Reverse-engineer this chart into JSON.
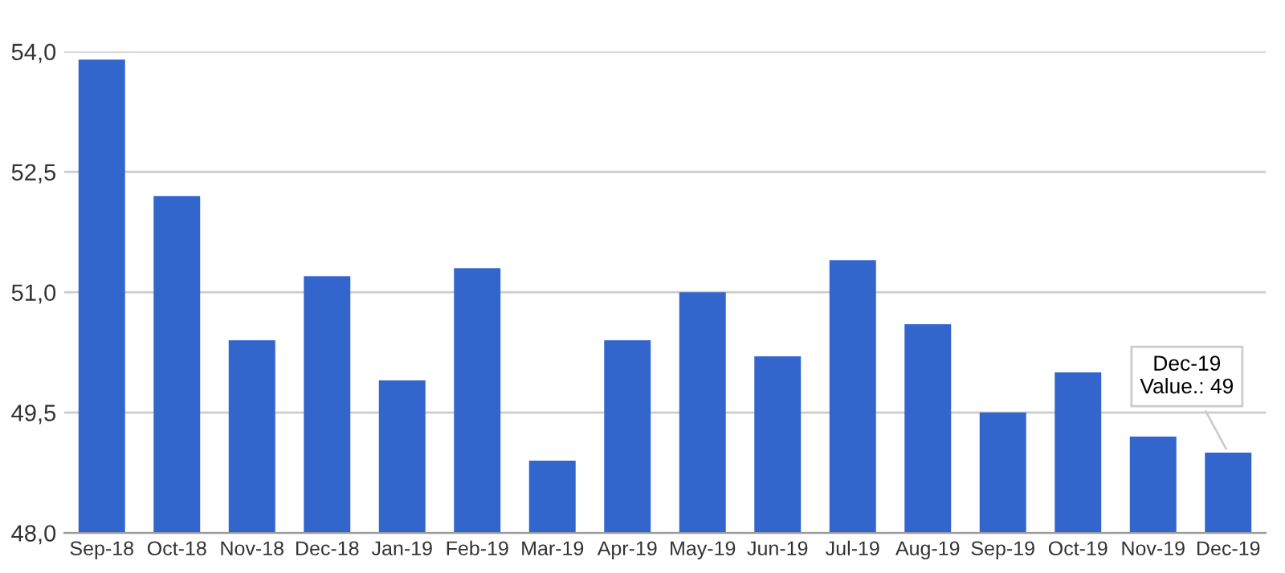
{
  "chart_data": {
    "type": "bar",
    "categories": [
      "Sep-18",
      "Oct-18",
      "Nov-18",
      "Dec-18",
      "Jan-19",
      "Feb-19",
      "Mar-19",
      "Apr-19",
      "May-19",
      "Jun-19",
      "Jul-19",
      "Aug-19",
      "Sep-19",
      "Oct-19",
      "Nov-19",
      "Dec-19"
    ],
    "series": [
      {
        "color": "#3366cc",
        "values": [
          53.9,
          52.2,
          50.4,
          51.2,
          49.9,
          51.3,
          48.9,
          50.4,
          51.0,
          50.2,
          51.4,
          50.6,
          49.5,
          50.0,
          49.2,
          49.0
        ]
      }
    ],
    "ylim": [
      48,
      54
    ],
    "yticks": [
      {
        "value": 48,
        "label": "48,0"
      },
      {
        "value": 49.5,
        "label": "49,5"
      },
      {
        "value": 51,
        "label": "51,0"
      },
      {
        "value": 52.5,
        "label": "52,5"
      },
      {
        "value": 54,
        "label": "54,0"
      }
    ],
    "grid": "y",
    "legend": false,
    "annotations": [
      {
        "text": "Dec-19\nValue.: 49",
        "x": "Dec-19",
        "y": 49
      }
    ]
  }
}
